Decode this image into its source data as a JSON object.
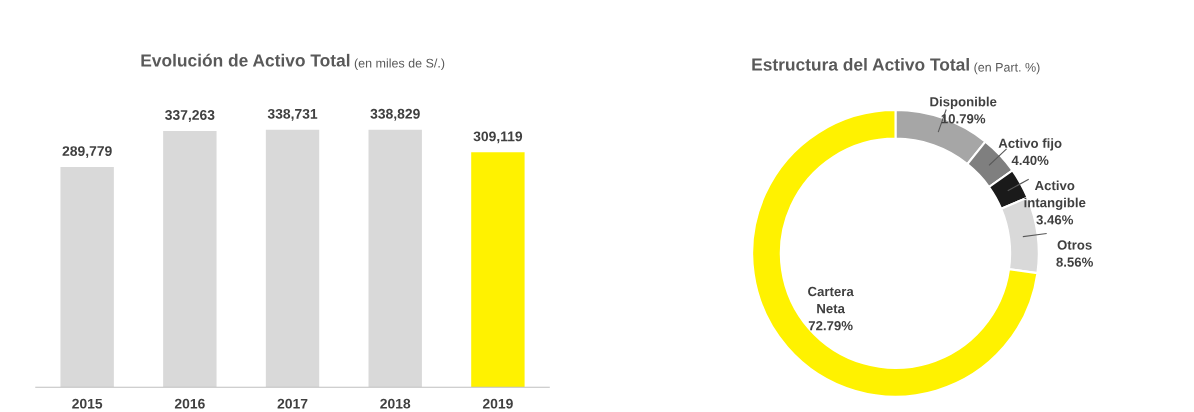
{
  "chart_data": [
    {
      "type": "bar",
      "title": "Evolución de Activo Total",
      "subtitle": "(en miles de S/.)",
      "categories": [
        "2015",
        "2016",
        "2017",
        "2018",
        "2019"
      ],
      "values": [
        289779,
        337263,
        338731,
        338829,
        309119
      ],
      "colors": [
        "#d9d9d9",
        "#d9d9d9",
        "#d9d9d9",
        "#d9d9d9",
        "#fff200"
      ],
      "value_labels": [
        "289,779",
        "337,263",
        "338,731",
        "338,829",
        "309,119"
      ],
      "tick_labels": "x"
    },
    {
      "type": "donut",
      "title": "Estructura del Activo Total",
      "subtitle": "(en Part. %)",
      "categories": [
        "Disponible",
        "Activo fijo",
        "Activo intangible",
        "Otros",
        "Cartera Neta"
      ],
      "values": [
        10.79,
        4.4,
        3.46,
        8.56,
        72.79
      ],
      "colors": [
        "#a6a6a6",
        "#7f7f7f",
        "#1a1a1a",
        "#d9d9d9",
        "#fff200"
      ],
      "value_labels": [
        "10.79%",
        "4.40%",
        "3.46%",
        "8.56%",
        "72.79%"
      ]
    }
  ]
}
